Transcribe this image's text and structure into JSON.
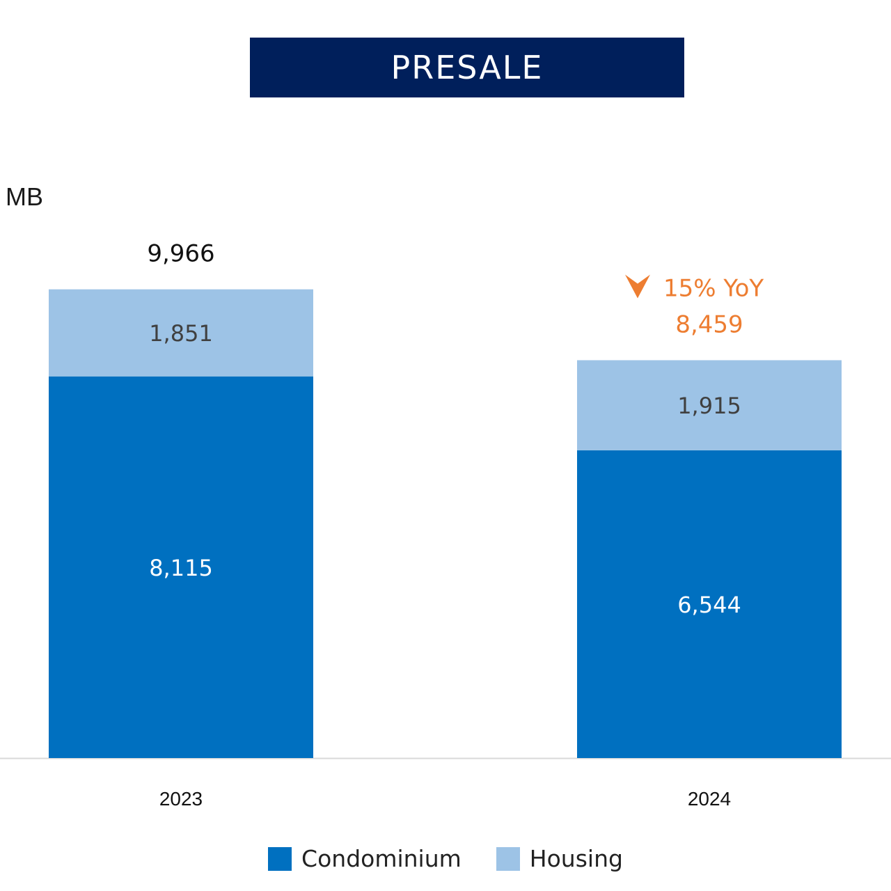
{
  "header": {
    "title": "PRESALE"
  },
  "chart_data": {
    "type": "bar",
    "stacked": true,
    "unit_label": "MB",
    "categories": [
      "2023",
      "2024"
    ],
    "series": [
      {
        "name": "Condominium",
        "values": [
          8115,
          6544
        ],
        "color": "#0070c0",
        "label_color": "#ffffff"
      },
      {
        "name": "Housing",
        "values": [
          1851,
          1915
        ],
        "color": "#9dc3e6",
        "label_color": "#404040"
      }
    ],
    "totals": [
      {
        "text": "9,966",
        "color": "#111111"
      },
      {
        "text": "8,459",
        "color": "#ed7d31"
      }
    ],
    "annotation": {
      "text": "15% YoY",
      "icon": "down-arrow-icon",
      "color": "#ed7d31",
      "category": "2024"
    },
    "ylim": [
      0,
      11500
    ],
    "grid": false,
    "legend_position": "bottom"
  }
}
